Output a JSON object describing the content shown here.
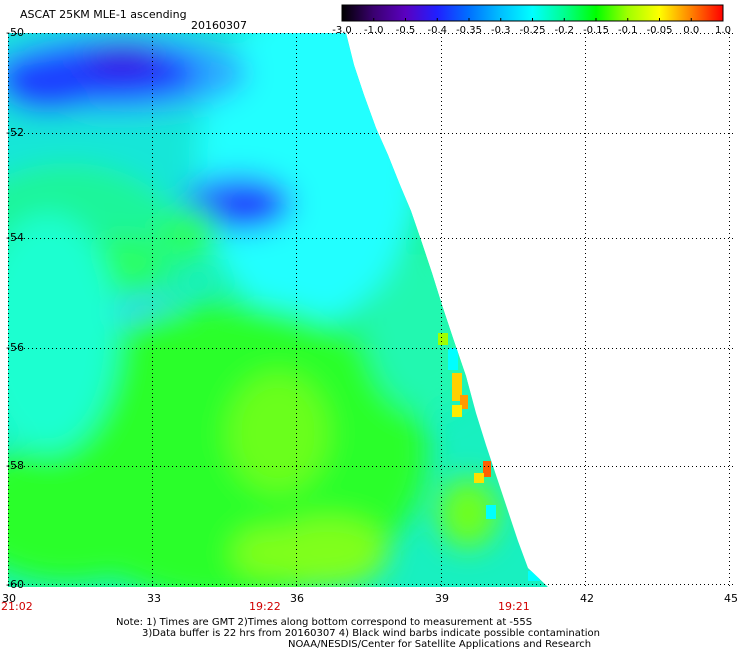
{
  "header": {
    "title": "ASCAT 25KM MLE-1 ascending",
    "date": "20160307"
  },
  "colorbar": {
    "ticks": [
      "-3.0",
      "-1.0",
      "-0.5",
      "-0.4",
      "-0.35",
      "-0.3",
      "-0.25",
      "-0.2",
      "-0.15",
      "-0.1",
      "-0.05",
      "0.0",
      "1.0"
    ],
    "colors": [
      "#000000",
      "#3a0070",
      "#5a00c0",
      "#2020ff",
      "#0070ff",
      "#00c0ff",
      "#00ffff",
      "#00ff90",
      "#00ff00",
      "#a0ff00",
      "#ffff00",
      "#ff8000",
      "#ff0000"
    ]
  },
  "map": {
    "lon_range": [
      30,
      45
    ],
    "lat_range": [
      -50,
      -60
    ],
    "x_ticks": [
      "30",
      "33",
      "36",
      "39",
      "42",
      "45"
    ],
    "y_ticks": [
      "-50",
      "-52",
      "-54",
      "-56",
      "-58",
      "-60"
    ]
  },
  "times": {
    "left": "21:02",
    "mid": "19:22",
    "right": "19:21"
  },
  "notes": {
    "line1": "Note: 1) Times are GMT 2)Times along bottom correspond to measurement at -55S",
    "line2": "3)Data buffer is 22 hrs from 20160307 4) Black wind barbs indicate possible contamination",
    "line3": "NOAA/NESDIS/Center for Satellite Applications and Research"
  }
}
